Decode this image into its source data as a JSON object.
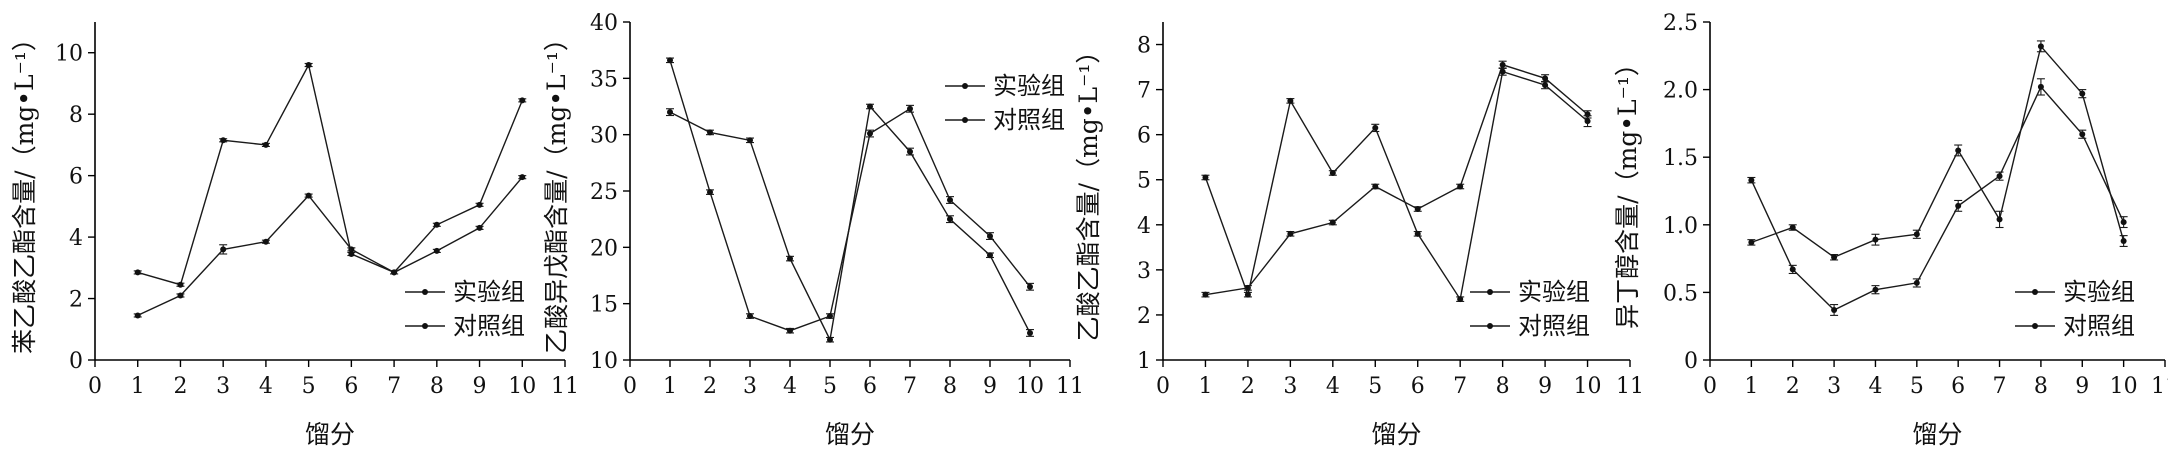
{
  "chart_data": [
    {
      "type": "line",
      "xlabel": "馏分",
      "ylabel": "苯乙酸乙酯含量/（mg•L⁻¹）",
      "x": [
        1,
        2,
        3,
        4,
        5,
        6,
        7,
        8,
        9,
        10
      ],
      "xlim": [
        0,
        11
      ],
      "xticks": [
        0,
        1,
        2,
        3,
        4,
        5,
        6,
        7,
        8,
        9,
        10,
        11
      ],
      "ylim": [
        0,
        11
      ],
      "yticks": [
        0,
        2,
        4,
        6,
        8,
        10
      ],
      "legend_position": "bottom-right",
      "series": [
        {
          "name": "实验组",
          "values": [
            1.45,
            2.1,
            3.6,
            3.85,
            5.35,
            3.6,
            2.85,
            3.55,
            4.3,
            5.95
          ],
          "error": [
            0.05,
            0.05,
            0.15,
            0.05,
            0.05,
            0.05,
            0.05,
            0.05,
            0.05,
            0.05
          ]
        },
        {
          "name": "对照组",
          "values": [
            2.85,
            2.45,
            7.15,
            7.0,
            9.6,
            3.45,
            2.85,
            4.4,
            5.05,
            8.45
          ],
          "error": [
            0.05,
            0.05,
            0.05,
            0.05,
            0.05,
            0.05,
            0.05,
            0.05,
            0.05,
            0.05
          ]
        }
      ]
    },
    {
      "type": "line",
      "xlabel": "馏分",
      "ylabel": "乙酸异戊酯含量/（mg•L⁻¹）",
      "x": [
        1,
        2,
        3,
        4,
        5,
        6,
        7,
        8,
        9,
        10
      ],
      "xlim": [
        0,
        11
      ],
      "xticks": [
        0,
        1,
        2,
        3,
        4,
        5,
        6,
        7,
        8,
        9,
        10,
        11
      ],
      "ylim": [
        10,
        40
      ],
      "yticks": [
        10,
        15,
        20,
        25,
        30,
        35,
        40
      ],
      "legend_position": "top-right",
      "series": [
        {
          "name": "实验组",
          "values": [
            32.0,
            30.2,
            29.5,
            19.0,
            11.8,
            32.5,
            28.5,
            22.5,
            19.3,
            12.4
          ],
          "error": [
            0.3,
            0.2,
            0.2,
            0.2,
            0.2,
            0.2,
            0.3,
            0.3,
            0.2,
            0.3
          ]
        },
        {
          "name": "对照组",
          "values": [
            36.6,
            24.9,
            13.9,
            12.6,
            13.9,
            30.1,
            32.3,
            24.2,
            21.0,
            16.5
          ],
          "error": [
            0.2,
            0.2,
            0.2,
            0.2,
            0.2,
            0.3,
            0.3,
            0.3,
            0.3,
            0.3
          ]
        }
      ]
    },
    {
      "type": "line",
      "xlabel": "馏分",
      "ylabel": "乙酸乙酯含量/（mg•L⁻¹）",
      "x": [
        1,
        2,
        3,
        4,
        5,
        6,
        7,
        8,
        9,
        10
      ],
      "xlim": [
        0,
        11
      ],
      "xticks": [
        0,
        1,
        2,
        3,
        4,
        5,
        6,
        7,
        8,
        9,
        10,
        11
      ],
      "ylim": [
        1,
        8.5
      ],
      "yticks": [
        1,
        2,
        3,
        4,
        5,
        6,
        7,
        8
      ],
      "legend_position": "bottom-right",
      "series": [
        {
          "name": "实验组",
          "values": [
            2.45,
            2.6,
            3.8,
            4.05,
            4.85,
            4.35,
            4.85,
            7.55,
            7.25,
            6.45
          ],
          "error": [
            0.05,
            0.05,
            0.05,
            0.05,
            0.05,
            0.05,
            0.05,
            0.08,
            0.08,
            0.08
          ]
        },
        {
          "name": "对照组",
          "values": [
            5.05,
            2.45,
            6.75,
            5.15,
            6.15,
            3.8,
            2.35,
            7.4,
            7.1,
            6.3
          ],
          "error": [
            0.05,
            0.05,
            0.05,
            0.05,
            0.08,
            0.05,
            0.05,
            0.08,
            0.08,
            0.12
          ]
        }
      ]
    },
    {
      "type": "line",
      "xlabel": "馏分",
      "ylabel": "异丁醇含量/（mg•L⁻¹）",
      "x": [
        1,
        2,
        3,
        4,
        5,
        6,
        7,
        8,
        9,
        10
      ],
      "xlim": [
        0,
        11
      ],
      "xticks": [
        0,
        1,
        2,
        3,
        4,
        5,
        6,
        7,
        8,
        9,
        10,
        11
      ],
      "ylim": [
        0,
        2.5
      ],
      "yticks": [
        0,
        0.5,
        1.0,
        1.5,
        2.0,
        2.5
      ],
      "ytick_labels": [
        "0",
        "0.5",
        "1.0",
        "1.5",
        "2.0",
        "2.5"
      ],
      "legend_position": "bottom-right",
      "series": [
        {
          "name": "实验组",
          "values": [
            0.87,
            0.98,
            0.76,
            0.89,
            0.93,
            1.55,
            1.04,
            2.32,
            1.97,
            0.88
          ],
          "error": [
            0.02,
            0.02,
            0.02,
            0.04,
            0.03,
            0.04,
            0.06,
            0.04,
            0.03,
            0.04
          ]
        },
        {
          "name": "对照组",
          "values": [
            1.33,
            0.67,
            0.37,
            0.52,
            0.57,
            1.14,
            1.36,
            2.02,
            1.67,
            1.02
          ],
          "error": [
            0.02,
            0.03,
            0.04,
            0.03,
            0.03,
            0.04,
            0.03,
            0.06,
            0.03,
            0.04
          ]
        }
      ]
    }
  ]
}
